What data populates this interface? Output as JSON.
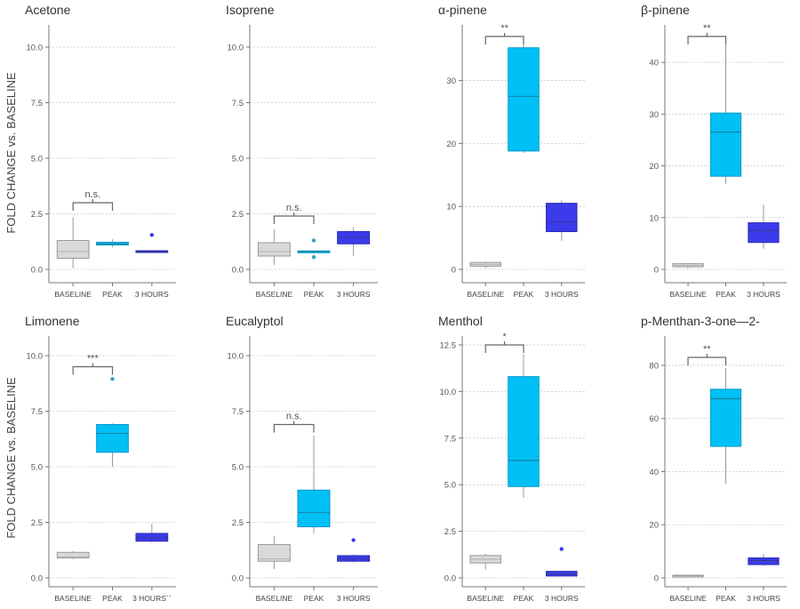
{
  "ylabel": "FOLD CHANGE vs. BASELINE",
  "colors": {
    "baseline": "#d9d9d9",
    "peak": "#00c0f5",
    "hours3": "#3b3beb",
    "grid": "#c8c8c8",
    "axis": "#777777",
    "bracket": "#666666"
  },
  "chart_data": [
    {
      "type": "box",
      "title": "Acetone",
      "categories": [
        "BASELINE",
        "PEAK",
        "3 HOURS"
      ],
      "ylim": [
        0,
        10
      ],
      "yticks": [
        "0.0",
        "2.5",
        "5.0",
        "7.5",
        "10.0"
      ],
      "grid": true,
      "boxes": [
        {
          "whislo": 0.05,
          "q1": 0.5,
          "med": 0.8,
          "q3": 1.3,
          "whishi": 2.35,
          "fliers": []
        },
        {
          "whislo": 1.0,
          "q1": 1.1,
          "med": 1.15,
          "q3": 1.22,
          "whishi": 1.35,
          "fliers": []
        },
        {
          "whislo": 0.75,
          "q1": 0.78,
          "med": 0.8,
          "q3": 0.84,
          "whishi": 0.86,
          "fliers": [
            1.55
          ]
        }
      ],
      "significance": {
        "label": "n.s.",
        "from": 0,
        "to": 1,
        "y": 3.0
      }
    },
    {
      "type": "box",
      "title": "Isoprene",
      "categories": [
        "BASELINE",
        "PEAK",
        "3 HOURS"
      ],
      "ylim": [
        0,
        10
      ],
      "yticks": [
        "0.0",
        "2.5",
        "5.0",
        "7.5",
        "10.0"
      ],
      "grid": true,
      "boxes": [
        {
          "whislo": 0.2,
          "q1": 0.6,
          "med": 0.8,
          "q3": 1.2,
          "whishi": 1.8,
          "fliers": []
        },
        {
          "whislo": 0.78,
          "q1": 0.78,
          "med": 0.8,
          "q3": 0.83,
          "whishi": 0.83,
          "fliers": [
            1.3,
            0.55
          ]
        },
        {
          "whislo": 0.6,
          "q1": 1.15,
          "med": 1.45,
          "q3": 1.7,
          "whishi": 1.9,
          "fliers": []
        }
      ],
      "significance": {
        "label": "n.s.",
        "from": 0,
        "to": 1,
        "y": 2.4
      }
    },
    {
      "type": "box",
      "title": "α-pinene",
      "categories": [
        "BASELINE",
        "PEAK",
        "3 HOURS"
      ],
      "ylim": [
        0,
        37
      ],
      "yticks": [
        "0",
        "10",
        "20",
        "30"
      ],
      "grid": true,
      "boxes": [
        {
          "whislo": 0.2,
          "q1": 0.5,
          "med": 0.8,
          "q3": 1.1,
          "whishi": 1.3,
          "fliers": []
        },
        {
          "whislo": 18.5,
          "q1": 18.8,
          "med": 27.5,
          "q3": 35.2,
          "whishi": 36.0,
          "fliers": []
        },
        {
          "whislo": 4.5,
          "q1": 6.0,
          "med": 7.5,
          "q3": 10.5,
          "whishi": 11.0,
          "fliers": []
        }
      ],
      "significance": {
        "label": "**",
        "from": 0,
        "to": 1,
        "y": 37.0
      }
    },
    {
      "type": "box",
      "title": "β-pinene",
      "categories": [
        "BASELINE",
        "PEAK",
        "3 HOURS"
      ],
      "ylim": [
        0,
        45
      ],
      "yticks": [
        "0",
        "10",
        "20",
        "30",
        "40"
      ],
      "grid": true,
      "boxes": [
        {
          "whislo": 0.2,
          "q1": 0.5,
          "med": 0.8,
          "q3": 1.1,
          "whishi": 1.3,
          "fliers": []
        },
        {
          "whislo": 16.5,
          "q1": 18.0,
          "med": 26.5,
          "q3": 30.2,
          "whishi": 43.5,
          "fliers": []
        },
        {
          "whislo": 4.0,
          "q1": 5.2,
          "med": 7.5,
          "q3": 9.0,
          "whishi": 12.5,
          "fliers": []
        }
      ],
      "significance": {
        "label": "**",
        "from": 0,
        "to": 1,
        "y": 45.0
      }
    },
    {
      "type": "box",
      "title": "Limonene",
      "categories": [
        "BASELINE",
        "PEAK",
        "3 HOURS``"
      ],
      "ylim": [
        0,
        10
      ],
      "yticks": [
        "0.0",
        "2.5",
        "5.0",
        "7.5",
        "10.0"
      ],
      "grid": true,
      "boxes": [
        {
          "whislo": 0.85,
          "q1": 0.9,
          "med": 0.95,
          "q3": 1.15,
          "whishi": 1.2,
          "fliers": []
        },
        {
          "whislo": 5.0,
          "q1": 5.65,
          "med": 6.5,
          "q3": 6.9,
          "whishi": 6.95,
          "fliers": [
            8.95
          ]
        },
        {
          "whislo": 1.6,
          "q1": 1.65,
          "med": 1.8,
          "q3": 2.0,
          "whishi": 2.45,
          "fliers": []
        }
      ],
      "significance": {
        "label": "***",
        "from": 0,
        "to": 1,
        "y": 9.5
      }
    },
    {
      "type": "box",
      "title": "Eucalyptol",
      "categories": [
        "BASELINE",
        "PEAK",
        "3 HOURS"
      ],
      "ylim": [
        0,
        10
      ],
      "yticks": [
        "0.0",
        "2.5",
        "5.0",
        "7.5",
        "10.0"
      ],
      "grid": true,
      "boxes": [
        {
          "whislo": 0.4,
          "q1": 0.75,
          "med": 0.85,
          "q3": 1.5,
          "whishi": 1.9,
          "fliers": []
        },
        {
          "whislo": 2.0,
          "q1": 2.3,
          "med": 2.95,
          "q3": 3.95,
          "whishi": 6.4,
          "fliers": []
        },
        {
          "whislo": 0.7,
          "q1": 0.75,
          "med": 0.85,
          "q3": 1.0,
          "whishi": 1.05,
          "fliers": [
            1.7
          ]
        }
      ],
      "significance": {
        "label": "n.s.",
        "from": 0,
        "to": 1,
        "y": 6.9
      }
    },
    {
      "type": "box",
      "title": "Menthol",
      "categories": [
        "BASELINE",
        "PEAK",
        "3 HOURS"
      ],
      "ylim": [
        0,
        12.5
      ],
      "yticks": [
        "0.0",
        "2.5",
        "5.0",
        "7.5",
        "10.0",
        "12.5"
      ],
      "grid": true,
      "boxes": [
        {
          "whislo": 0.45,
          "q1": 0.8,
          "med": 1.0,
          "q3": 1.2,
          "whishi": 1.3,
          "fliers": []
        },
        {
          "whislo": 4.3,
          "q1": 4.9,
          "med": 6.3,
          "q3": 10.8,
          "whishi": 12.0,
          "fliers": []
        },
        {
          "whislo": 0.1,
          "q1": 0.1,
          "med": 0.2,
          "q3": 0.35,
          "whishi": 0.4,
          "fliers": [
            1.55
          ]
        }
      ],
      "significance": {
        "label": "*",
        "from": 0,
        "to": 1,
        "y": 12.5
      }
    },
    {
      "type": "box",
      "title": "p-Menthan-3-one—2-",
      "categories": [
        "BASELINE",
        "PEAK",
        "3 HOURS"
      ],
      "ylim": [
        0,
        85
      ],
      "yticks": [
        "0",
        "20",
        "40",
        "60",
        "80"
      ],
      "grid": true,
      "boxes": [
        {
          "whislo": 0.3,
          "q1": 0.5,
          "med": 0.8,
          "q3": 1.0,
          "whishi": 1.2,
          "fliers": []
        },
        {
          "whislo": 35.5,
          "q1": 49.5,
          "med": 67.5,
          "q3": 71.0,
          "whishi": 79.0,
          "fliers": []
        },
        {
          "whislo": 4.5,
          "q1": 5.0,
          "med": 6.5,
          "q3": 7.5,
          "whishi": 9.0,
          "fliers": []
        }
      ],
      "significance": {
        "label": "**",
        "from": 0,
        "to": 1,
        "y": 83.0
      }
    }
  ]
}
